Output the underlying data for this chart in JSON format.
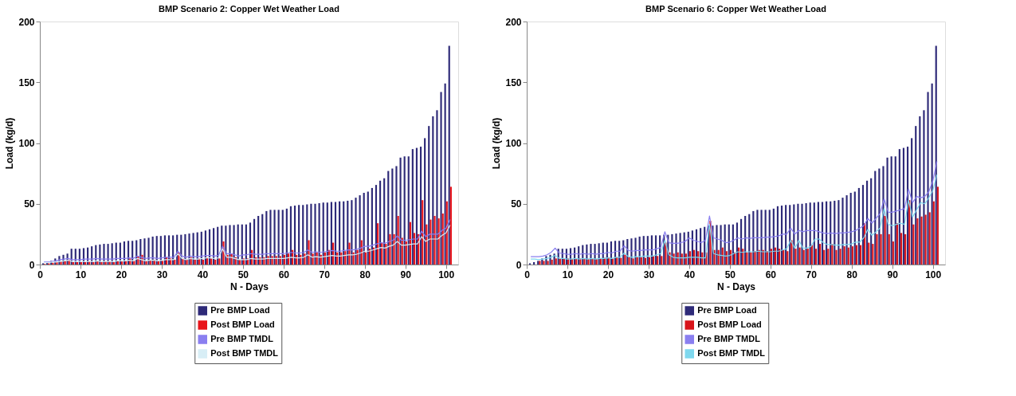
{
  "chart_data": [
    {
      "type": "bar",
      "title": "BMP Scenario 2: Copper Wet Weather Load",
      "xlabel": "N - Days",
      "ylabel": "Load (kg/d)",
      "legend": "bottom",
      "x": [
        1,
        2,
        3,
        4,
        5,
        6,
        7,
        8,
        9,
        10,
        11,
        12,
        13,
        14,
        15,
        16,
        17,
        18,
        19,
        20,
        21,
        22,
        23,
        24,
        25,
        26,
        27,
        28,
        29,
        30,
        31,
        32,
        33,
        34,
        35,
        36,
        37,
        38,
        39,
        40,
        41,
        42,
        43,
        44,
        45,
        46,
        47,
        48,
        49,
        50,
        51,
        52,
        53,
        54,
        55,
        56,
        57,
        58,
        59,
        60,
        61,
        62,
        63,
        64,
        65,
        66,
        67,
        68,
        69,
        70,
        71,
        72,
        73,
        74,
        75,
        76,
        77,
        78,
        79,
        80,
        81,
        82,
        83,
        84,
        85,
        86,
        87,
        88,
        89,
        90,
        91,
        92,
        93,
        94,
        95,
        96,
        97,
        98,
        99,
        100,
        101
      ],
      "xlim": [
        0,
        103
      ],
      "xticks": [
        0,
        10,
        20,
        30,
        40,
        50,
        60,
        70,
        80,
        90,
        100
      ],
      "ylim": [
        0,
        200
      ],
      "yticks": [
        0,
        50,
        100,
        150,
        200
      ],
      "series": [
        {
          "name": "Pre BMP Load",
          "type": "bar",
          "color": "#2e2a78",
          "values": [
            1,
            2,
            3,
            5,
            7,
            8,
            9,
            13,
            13,
            13,
            13.5,
            14,
            15,
            16,
            16.5,
            17,
            17,
            17.5,
            18,
            18,
            19,
            19.5,
            19.5,
            20,
            21,
            21.5,
            22,
            23,
            23.5,
            23.5,
            24,
            24,
            24,
            24.5,
            24.5,
            25,
            25.5,
            26,
            26.5,
            27,
            28,
            29,
            30,
            31,
            32,
            32,
            32.5,
            32.5,
            33,
            33,
            33,
            34.5,
            37.5,
            40,
            41.5,
            44,
            45,
            45,
            45,
            45,
            46,
            48,
            48.5,
            49,
            49,
            49.5,
            50,
            50,
            50.5,
            51,
            51,
            51.5,
            51.5,
            52,
            52,
            52.5,
            53,
            55,
            57,
            59,
            60,
            63,
            65.5,
            69,
            71,
            77,
            79,
            81,
            88,
            89,
            89,
            95,
            96,
            97,
            104,
            114,
            122,
            127,
            142,
            149,
            180
          ]
        },
        {
          "name": "Post BMP Load",
          "type": "bar",
          "color": "#e8141a",
          "values": [
            0.5,
            1,
            1.5,
            2,
            2.5,
            3,
            4,
            2,
            2,
            2,
            2,
            2.5,
            2,
            3,
            2,
            2.5,
            2.5,
            2,
            3,
            2.5,
            3,
            5,
            3,
            7,
            8,
            3,
            4,
            4,
            3,
            3,
            6,
            5,
            4,
            10,
            5,
            4,
            6,
            4,
            5,
            4,
            6,
            5,
            4,
            5,
            19,
            8,
            9,
            6,
            4,
            5,
            5,
            12,
            6,
            6,
            6,
            7,
            7,
            7,
            7,
            8,
            9,
            12,
            8,
            8,
            9,
            20,
            9,
            10,
            8,
            10,
            12,
            18,
            10,
            10,
            11,
            18,
            10,
            12,
            20,
            10,
            13,
            14,
            34,
            18,
            17,
            25,
            25,
            40,
            22,
            19,
            35,
            26,
            25,
            53,
            33,
            37,
            40,
            38,
            42,
            52,
            64
          ]
        },
        {
          "name": "Pre BMP TMDL",
          "type": "line",
          "color": "#8a7ff0",
          "values": [
            2,
            2,
            2.5,
            3,
            4,
            4.5,
            5,
            4,
            4,
            4,
            4.5,
            4.5,
            4.5,
            5,
            4.5,
            4.5,
            4.5,
            4.5,
            5,
            5,
            5,
            5.5,
            5,
            7,
            6,
            5,
            5.5,
            5.5,
            5,
            5.5,
            6,
            6,
            6,
            11,
            7,
            6,
            7,
            6.5,
            6.5,
            7,
            7.5,
            7.5,
            7,
            7.5,
            15,
            9,
            9,
            8,
            7,
            8,
            8,
            9,
            8.5,
            8.5,
            8.5,
            9,
            9,
            9,
            9,
            9,
            9.5,
            10,
            9.5,
            9.5,
            10,
            12,
            10,
            10.5,
            10,
            10.5,
            11,
            11.5,
            11,
            11,
            11.5,
            12,
            12,
            12.5,
            13.5,
            15,
            15,
            16,
            17,
            18,
            17.5,
            19,
            20,
            23.5,
            20,
            20,
            20.5,
            21,
            21,
            27.5,
            23,
            25,
            25,
            25,
            28,
            30,
            37
          ]
        },
        {
          "name": "Post BMP TMDL",
          "type": "line",
          "color": "#d8eef6",
          "values": [
            1.5,
            1.5,
            2,
            2,
            2.5,
            3,
            3.5,
            2.5,
            2.5,
            2.5,
            2.5,
            2.5,
            2.5,
            3,
            2.5,
            2.5,
            2.5,
            2.5,
            3,
            3,
            3,
            3.5,
            3,
            5,
            4,
            3,
            3.5,
            3.5,
            3,
            3.5,
            4,
            4,
            4,
            9,
            5,
            4,
            5,
            4.5,
            4.5,
            5,
            5.5,
            5.5,
            5,
            5.5,
            13,
            6,
            6,
            5,
            4,
            4,
            4,
            5,
            4.5,
            4.5,
            4.5,
            5,
            5,
            5,
            5,
            5,
            5.5,
            6,
            5.5,
            5.5,
            6,
            8,
            6,
            6.5,
            6,
            6.5,
            7,
            7.5,
            7,
            7,
            7.5,
            8,
            8,
            8.5,
            9.5,
            11,
            11,
            12,
            13,
            14,
            13.5,
            15,
            16,
            19,
            16,
            16,
            16.5,
            17,
            17,
            23,
            19,
            21,
            21,
            21,
            24,
            26,
            32.5
          ]
        }
      ]
    },
    {
      "type": "bar",
      "title": "BMP Scenario 6: Copper Wet Weather Load",
      "xlabel": "N - Days",
      "ylabel": "Load (kg/d)",
      "legend": "bottom",
      "x": [
        1,
        2,
        3,
        4,
        5,
        6,
        7,
        8,
        9,
        10,
        11,
        12,
        13,
        14,
        15,
        16,
        17,
        18,
        19,
        20,
        21,
        22,
        23,
        24,
        25,
        26,
        27,
        28,
        29,
        30,
        31,
        32,
        33,
        34,
        35,
        36,
        37,
        38,
        39,
        40,
        41,
        42,
        43,
        44,
        45,
        46,
        47,
        48,
        49,
        50,
        51,
        52,
        53,
        54,
        55,
        56,
        57,
        58,
        59,
        60,
        61,
        62,
        63,
        64,
        65,
        66,
        67,
        68,
        69,
        70,
        71,
        72,
        73,
        74,
        75,
        76,
        77,
        78,
        79,
        80,
        81,
        82,
        83,
        84,
        85,
        86,
        87,
        88,
        89,
        90,
        91,
        92,
        93,
        94,
        95,
        96,
        97,
        98,
        99,
        100,
        101
      ],
      "xlim": [
        0,
        103
      ],
      "xticks": [
        0,
        10,
        20,
        30,
        40,
        50,
        60,
        70,
        80,
        90,
        100
      ],
      "ylim": [
        0,
        200
      ],
      "yticks": [
        0,
        50,
        100,
        150,
        200
      ],
      "series": [
        {
          "name": "Pre BMP Load",
          "type": "bar",
          "color": "#2e2a78",
          "values": [
            1,
            2,
            3,
            5,
            7,
            8,
            9,
            13,
            13,
            13,
            13.5,
            14,
            15,
            16,
            16.5,
            17,
            17,
            17.5,
            18,
            18,
            19,
            19.5,
            19.5,
            20,
            21,
            21.5,
            22,
            23,
            23.5,
            23.5,
            24,
            24,
            24,
            24.5,
            24.5,
            25,
            25.5,
            26,
            26.5,
            27,
            28,
            29,
            30,
            31,
            32,
            32,
            32.5,
            32.5,
            33,
            33,
            33,
            34.5,
            37.5,
            40,
            41.5,
            44,
            45,
            45,
            45,
            45,
            46,
            48,
            48.5,
            49,
            49,
            49.5,
            50,
            50,
            50.5,
            51,
            51,
            51.5,
            51.5,
            52,
            52,
            52.5,
            53,
            55,
            57,
            59,
            60,
            63,
            65.5,
            69,
            71,
            77,
            79,
            81,
            88,
            89,
            89,
            95,
            96,
            97,
            104,
            114,
            122,
            127,
            142,
            149,
            180
          ]
        },
        {
          "name": "Post BMP Load",
          "type": "bar",
          "color": "#d8141a",
          "values": [
            0,
            0,
            3,
            3,
            3,
            4,
            5,
            5,
            5,
            5,
            4.5,
            5,
            5,
            5,
            4.5,
            5,
            4.5,
            5,
            5.5,
            6,
            5,
            6,
            5.5,
            8,
            6,
            5,
            6,
            6,
            5.5,
            6,
            7,
            7,
            7,
            18,
            10,
            9,
            10,
            9,
            9,
            11,
            12,
            11,
            10,
            10,
            36,
            12,
            12,
            14,
            11,
            12,
            10,
            14,
            13,
            10,
            10,
            11,
            12,
            12,
            11,
            13,
            14,
            13,
            12,
            11,
            20,
            13,
            14,
            12,
            13,
            16,
            13,
            17,
            12,
            13,
            17,
            12,
            13,
            15,
            14,
            15,
            16,
            16,
            34,
            18,
            17,
            25,
            25,
            40,
            25,
            19,
            34,
            26,
            25,
            53,
            33,
            38,
            39.5,
            41,
            43,
            52,
            64
          ]
        },
        {
          "name": "Pre BMP TMDL",
          "type": "line",
          "color": "#8a7ff0",
          "values": [
            6.5,
            6.5,
            6.5,
            7,
            8,
            10,
            13.5,
            9.5,
            9,
            8.5,
            8.5,
            9,
            8.5,
            9,
            8.5,
            9,
            8.5,
            9,
            9,
            10,
            9.5,
            11,
            11,
            15.5,
            11.5,
            11,
            11.5,
            11.5,
            12,
            12,
            12,
            13,
            14,
            27,
            18,
            17.5,
            17.5,
            18,
            19,
            22,
            20,
            19,
            18,
            20,
            40,
            22,
            21,
            20,
            18,
            18.5,
            20,
            22,
            21,
            22,
            21.5,
            22,
            22,
            22,
            22.5,
            22.5,
            23,
            23.5,
            25,
            25,
            30,
            25,
            28,
            27,
            28,
            28,
            28,
            27,
            26,
            25.5,
            26,
            25.5,
            26,
            26,
            26.5,
            27,
            28,
            30,
            32,
            38,
            34,
            38,
            42,
            54,
            43,
            43,
            44,
            45,
            46,
            62,
            51,
            56,
            55,
            56,
            60,
            69,
            85
          ]
        },
        {
          "name": "Post BMP TMDL",
          "type": "line",
          "color": "#7fd8ee",
          "values": [
            4.5,
            4.5,
            4,
            4.5,
            5,
            6,
            7.5,
            5,
            5,
            4.5,
            4.5,
            5,
            4.5,
            5,
            4.5,
            5,
            4.5,
            5,
            5,
            5.5,
            5,
            6,
            6,
            9.5,
            6.5,
            6,
            6.5,
            6.5,
            7,
            7,
            7,
            8,
            9,
            20,
            8,
            6,
            5.5,
            5.5,
            5.5,
            6,
            6,
            6,
            5.5,
            5.5,
            33,
            9,
            8,
            7.5,
            7,
            7.5,
            9,
            10.5,
            10,
            10.5,
            10.5,
            10.5,
            11,
            10.5,
            10.5,
            10.5,
            11,
            11,
            12,
            13,
            20,
            13.5,
            20,
            13.5,
            13.5,
            15,
            21,
            21,
            18,
            16.5,
            16.5,
            16,
            16,
            16.5,
            16.5,
            17,
            18.5,
            18.5,
            22,
            29,
            24,
            27,
            30,
            46,
            33,
            32,
            33,
            34,
            33,
            53,
            39,
            45,
            51,
            50,
            55,
            61,
            74
          ]
        }
      ]
    }
  ]
}
